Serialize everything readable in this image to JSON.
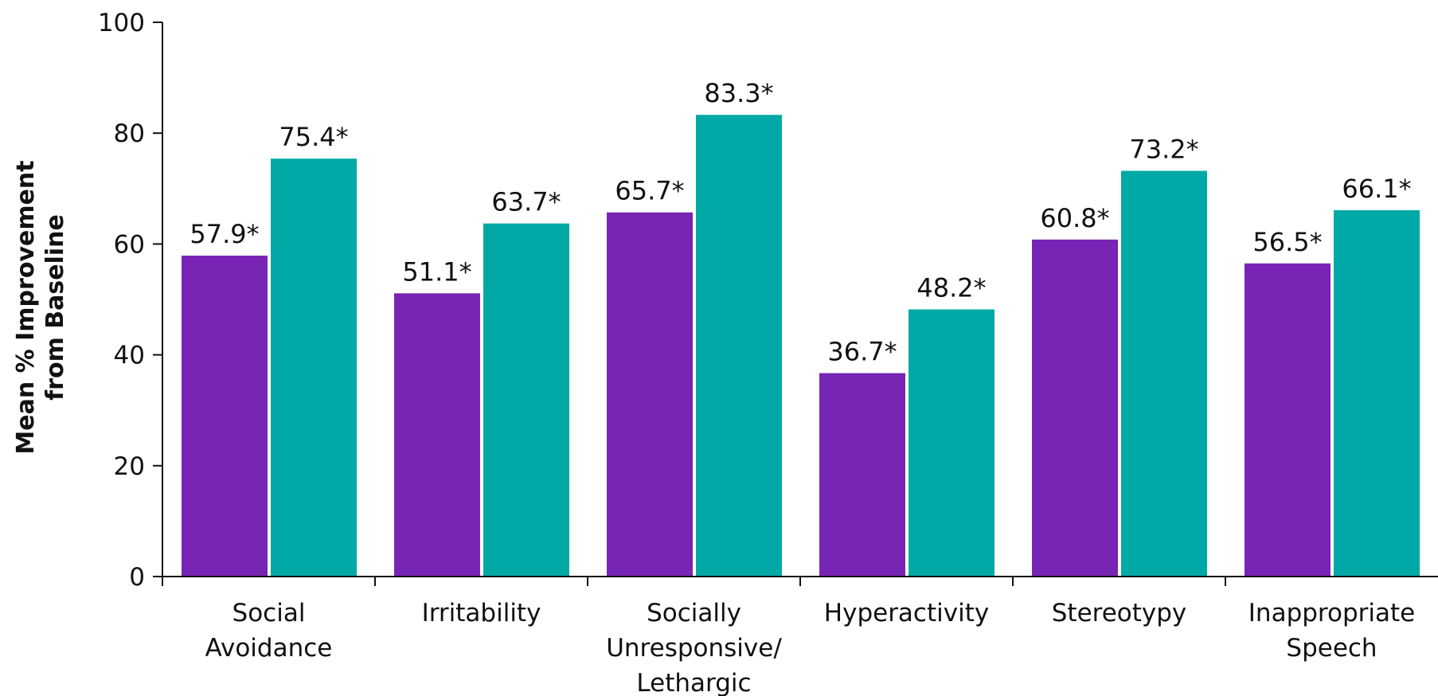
{
  "chart_data": {
    "type": "bar",
    "ylabel": [
      "Mean % Improvement",
      "from Baseline"
    ],
    "ylim": [
      0,
      100
    ],
    "yticks": [
      0,
      20,
      40,
      60,
      80,
      100
    ],
    "grid": false,
    "legend": "none",
    "categories": [
      [
        "Social",
        "Avoidance"
      ],
      [
        "Irritability"
      ],
      [
        "Socially",
        "Unresponsive/",
        "Lethargic"
      ],
      [
        "Hyperactivity"
      ],
      [
        "Stereotypy"
      ],
      [
        "Inappropriate",
        "Speech"
      ]
    ],
    "series": [
      {
        "color": "#7824B5",
        "values": [
          57.9,
          51.1,
          65.7,
          36.7,
          60.8,
          56.5
        ],
        "labels": [
          "57.9*",
          "51.1*",
          "65.7*",
          "36.7*",
          "60.8*",
          "56.5*"
        ]
      },
      {
        "color": "#00A9A5",
        "values": [
          75.4,
          63.7,
          83.3,
          48.2,
          73.2,
          66.1
        ],
        "labels": [
          "75.4*",
          "63.7*",
          "83.3*",
          "48.2*",
          "73.2*",
          "66.1*"
        ]
      }
    ]
  }
}
